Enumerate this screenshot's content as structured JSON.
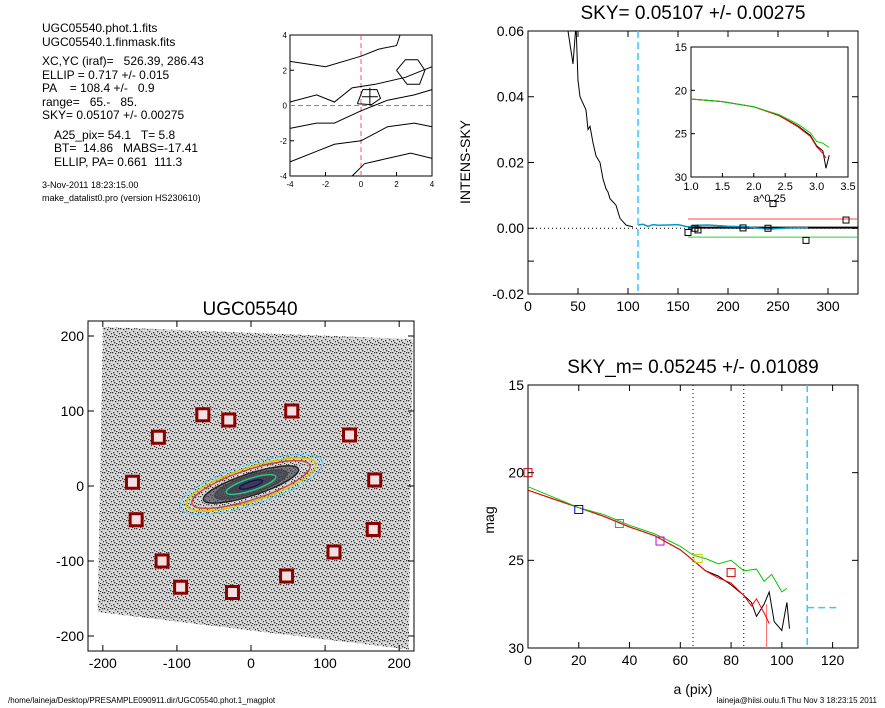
{
  "info": {
    "line1": "UGC05540.phot.1.fits",
    "line2": "UGC05540.1.finmask.fits",
    "xcyc": "XC,YC (iraf)=   526.39, 286.43",
    "ellip": "ELLIP = 0.717 +/- 0.015",
    "pa": "PA    = 108.4 +/-   0.9",
    "range": "range=   65.-   85.",
    "sky": "SKY= 0.05107 +/- 0.00275",
    "a25": "A25_pix= 54.1   T= 5.8",
    "bt": "BT=  14.86   MABS=-17.41",
    "ellippa": "ELLIP, PA= 0.661  111.3",
    "date": "3-Nov-2011 18:23:15.00",
    "program": "make_datalist0.pro (version HS230610)"
  },
  "footer": {
    "left": "/home/laineja/Desktop/PRESAMPLE090911.dir/UGC05540.phot.1_magplot",
    "right": "laineja@hiisi.oulu.fi  Thu Nov  3 18:23:15 2011"
  },
  "chart_data": [
    {
      "type": "contour",
      "id": "center-contour",
      "xlim": [
        -4,
        4
      ],
      "ylim": [
        -4,
        4
      ],
      "xticks": [
        "-4",
        "-2",
        "0",
        "2",
        "4"
      ],
      "yticks": [
        "4",
        "2",
        "0",
        "-2",
        "-4"
      ]
    },
    {
      "type": "line",
      "id": "sky",
      "title": "SKY= 0.05107 +/- 0.00275",
      "xlabel": "",
      "ylabel": "INTENS-SKY",
      "xlim": [
        0,
        330
      ],
      "ylim": [
        -0.02,
        0.06
      ],
      "xticks": [
        "0",
        "50",
        "100",
        "150",
        "200",
        "250",
        "300"
      ],
      "yticks": [
        "0.06",
        "0.04",
        "0.02",
        "0.00",
        "-0.01",
        "-0.02"
      ],
      "yticks_shown": [
        "0.06",
        "0.04",
        "0.02",
        "0.00",
        "-0.02"
      ],
      "profile": [
        [
          40,
          0.06
        ],
        [
          45,
          0.05
        ],
        [
          48,
          0.062
        ],
        [
          50,
          0.045
        ],
        [
          52,
          0.04
        ],
        [
          55,
          0.038
        ],
        [
          58,
          0.036
        ],
        [
          60,
          0.03
        ],
        [
          62,
          0.031
        ],
        [
          65,
          0.026
        ],
        [
          68,
          0.022
        ],
        [
          70,
          0.021
        ],
        [
          72,
          0.02
        ],
        [
          75,
          0.015
        ],
        [
          78,
          0.012
        ],
        [
          80,
          0.011
        ],
        [
          82,
          0.009
        ],
        [
          85,
          0.008
        ],
        [
          88,
          0.007
        ],
        [
          90,
          0.005
        ],
        [
          92,
          0.003
        ],
        [
          95,
          0.002
        ],
        [
          98,
          0.001
        ],
        [
          100,
          0.0008
        ],
        [
          105,
          0.0004
        ]
      ],
      "sky_profile": [
        [
          110,
          0.001
        ],
        [
          115,
          0.0012
        ],
        [
          120,
          0.0006
        ],
        [
          125,
          0.0011
        ],
        [
          130,
          0.0009
        ],
        [
          140,
          0.001
        ],
        [
          150,
          0.0011
        ],
        [
          160,
          0.0004
        ],
        [
          170,
          0.0009
        ],
        [
          180,
          0.001
        ],
        [
          200,
          0.0006
        ],
        [
          220,
          0.0004
        ],
        [
          240,
          -0.0003
        ],
        [
          260,
          0.0001
        ],
        [
          280,
          0.0002
        ]
      ],
      "boxes": [
        [
          160,
          -0.0013
        ],
        [
          167,
          0.0
        ],
        [
          170,
          -0.0005
        ],
        [
          215,
          0.0001
        ],
        [
          240,
          0.0
        ],
        [
          245,
          0.0075
        ],
        [
          278,
          -0.0037
        ],
        [
          318,
          0.0025
        ]
      ],
      "sky_level": 0.0002,
      "sky_upper": 0.0028,
      "sky_lower": -0.0027,
      "vline_x": 110,
      "inset": {
        "xlabel": "a^0.25",
        "xlim": [
          1.0,
          3.5
        ],
        "ylim": [
          15,
          30
        ],
        "xticks": [
          "1.0",
          "1.5",
          "2.0",
          "2.5",
          "3.0",
          "3.5"
        ],
        "yticks": [
          "15",
          "20",
          "25",
          "30"
        ],
        "lines": [
          {
            "color": "#000000",
            "points": [
              [
                1.0,
                21.0
              ],
              [
                1.5,
                21.3
              ],
              [
                2.0,
                21.9
              ],
              [
                2.4,
                22.9
              ],
              [
                2.7,
                24.1
              ],
              [
                2.9,
                25.2
              ],
              [
                3.0,
                26.4
              ],
              [
                3.1,
                27.0
              ],
              [
                3.15,
                29.0
              ],
              [
                3.2,
                27.5
              ]
            ]
          },
          {
            "color": "#ff0000",
            "points": [
              [
                1.0,
                21.0
              ],
              [
                1.5,
                21.3
              ],
              [
                2.0,
                21.9
              ],
              [
                2.4,
                22.9
              ],
              [
                2.7,
                24.2
              ],
              [
                2.9,
                25.3
              ],
              [
                3.0,
                26.5
              ],
              [
                3.1,
                27.3
              ],
              [
                3.15,
                27.8
              ]
            ]
          },
          {
            "color": "#00cc00",
            "points": [
              [
                1.0,
                21.0
              ],
              [
                1.5,
                21.3
              ],
              [
                2.0,
                21.9
              ],
              [
                2.4,
                22.8
              ],
              [
                2.7,
                23.9
              ],
              [
                2.9,
                24.9
              ],
              [
                3.0,
                25.9
              ],
              [
                3.1,
                26.1
              ],
              [
                3.2,
                26.6
              ]
            ]
          }
        ]
      }
    },
    {
      "type": "image",
      "id": "galaxy-image",
      "title": "UGC05540",
      "xlim": [
        -220,
        220
      ],
      "ylim": [
        -220,
        220
      ],
      "xticks": [
        "-200",
        "-100",
        "0",
        "100",
        "200"
      ],
      "yticks": [
        "200",
        "100",
        "0",
        "-100",
        "-200"
      ],
      "sky_boxes": [
        [
          -65,
          95
        ],
        [
          -30,
          88
        ],
        [
          55,
          100
        ],
        [
          -125,
          65
        ],
        [
          133,
          68
        ],
        [
          -160,
          5
        ],
        [
          167,
          8
        ],
        [
          -155,
          -45
        ],
        [
          165,
          -58
        ],
        [
          -120,
          -100
        ],
        [
          112,
          -88
        ],
        [
          -95,
          -135
        ],
        [
          -25,
          -142
        ],
        [
          48,
          -120
        ]
      ]
    },
    {
      "type": "line",
      "id": "magnitude",
      "title": "SKY_m=  0.05245 +/- 0.01089",
      "xlabel": "a (pix)",
      "ylabel": "mag",
      "xlim": [
        0,
        130
      ],
      "ylim": [
        15,
        30
      ],
      "xticks": [
        "0",
        "20",
        "40",
        "60",
        "80",
        "100",
        "120"
      ],
      "yticks": [
        "15",
        "20",
        "25",
        "30"
      ],
      "series": [
        {
          "color": "#000000",
          "points": [
            [
              0,
              21.0
            ],
            [
              10,
              21.5
            ],
            [
              20,
              22.0
            ],
            [
              30,
              22.5
            ],
            [
              40,
              23.1
            ],
            [
              50,
              23.6
            ],
            [
              60,
              24.4
            ],
            [
              65,
              25.0
            ],
            [
              70,
              25.6
            ],
            [
              75,
              25.9
            ],
            [
              80,
              26.4
            ],
            [
              85,
              27.0
            ],
            [
              88,
              27.4
            ],
            [
              90,
              28.2
            ],
            [
              93,
              27.5
            ],
            [
              95,
              26.8
            ],
            [
              97,
              28.5
            ],
            [
              100,
              29.0
            ],
            [
              102,
              27.4
            ],
            [
              103,
              28.9
            ]
          ]
        },
        {
          "color": "#ff0000",
          "points": [
            [
              0,
              21.0
            ],
            [
              10,
              21.5
            ],
            [
              20,
              22.0
            ],
            [
              30,
              22.5
            ],
            [
              40,
              23.1
            ],
            [
              50,
              23.6
            ],
            [
              60,
              24.4
            ],
            [
              65,
              25.0
            ],
            [
              70,
              25.6
            ],
            [
              75,
              26.0
            ],
            [
              80,
              26.3
            ],
            [
              85,
              27.0
            ],
            [
              88,
              27.6
            ],
            [
              90,
              27.2
            ],
            [
              93,
              28.0
            ],
            [
              95,
              28.6
            ]
          ]
        },
        {
          "color": "#00cc00",
          "points": [
            [
              0,
              20.8
            ],
            [
              10,
              21.4
            ],
            [
              20,
              22.0
            ],
            [
              30,
              22.4
            ],
            [
              40,
              23.0
            ],
            [
              50,
              23.5
            ],
            [
              60,
              24.2
            ],
            [
              65,
              24.7
            ],
            [
              70,
              24.9
            ],
            [
              75,
              25.2
            ],
            [
              80,
              25.0
            ],
            [
              85,
              25.6
            ],
            [
              90,
              25.5
            ],
            [
              93,
              26.2
            ],
            [
              96,
              25.8
            ],
            [
              100,
              26.8
            ],
            [
              102,
              26.6
            ]
          ]
        }
      ],
      "boxes": [
        [
          0,
          20.0,
          "#cc0000"
        ],
        [
          20,
          22.1,
          "#0000cc"
        ],
        [
          36,
          22.9,
          "#00aacc"
        ],
        [
          52,
          23.9,
          "#cc00cc"
        ],
        [
          67,
          24.9,
          "#cccc00"
        ],
        [
          80,
          25.7,
          "#cc0000"
        ]
      ],
      "vlines_dotted": [
        65,
        85
      ],
      "vline_cyan": 110,
      "red_drop_x": 94,
      "cyan_segment": {
        "x": [
          110,
          122
        ],
        "y": 27.7
      }
    }
  ]
}
